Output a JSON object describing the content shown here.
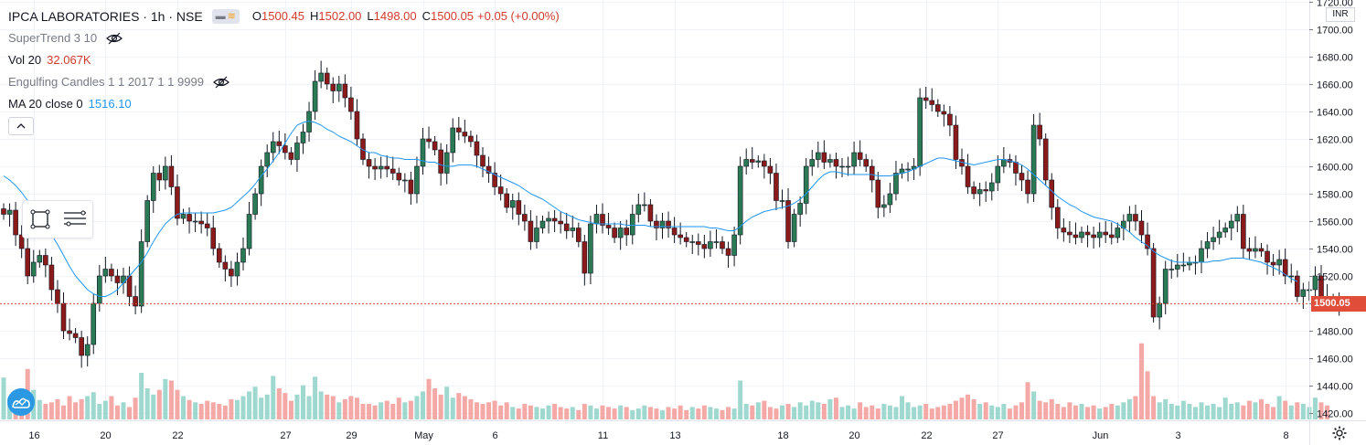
{
  "header": {
    "symbol": "IPCA LABORATORIES · 1h · NSE",
    "o_label": "O",
    "o_value": "1500.45",
    "h_label": "H",
    "h_value": "1502.00",
    "l_label": "L",
    "l_value": "1498.00",
    "c_label": "C",
    "c_value": "1500.05",
    "change": "+0.05 (+0.00%)"
  },
  "indicators": {
    "supertrend": "SuperTrend 3 10",
    "vol_label": "Vol 20",
    "vol_value": "32.067K",
    "engulfing": "Engulfing Candles 1 1 2017 1 1 9999",
    "ma_label": "MA 20 close 0",
    "ma_value": "1516.10"
  },
  "axis": {
    "currency": "INR",
    "current_price": "1500.05"
  },
  "colors": {
    "up": "#26a69a",
    "down": "#ef5350",
    "candle_up": "#2a7a55",
    "candle_down": "#8b1a1a",
    "ma": "#2196f3",
    "price_line": "#e04e3a"
  },
  "chart_data": {
    "type": "candlestick",
    "series": [
      {
        "name": "MA 20 close 0"
      },
      {
        "name": "Vol 20"
      }
    ],
    "ylim": [
      1415,
      1720
    ],
    "y_ticks": [
      1420,
      1440,
      1460,
      1480,
      1500,
      1520,
      1540,
      1560,
      1580,
      1600,
      1620,
      1640,
      1660,
      1680,
      1700,
      1720
    ],
    "y_tick_labels": [
      "1420.00",
      "1440.00",
      "1460.00",
      "1480.00",
      "1500.00",
      "1520.00",
      "1540.00",
      "1560.00",
      "1580.00",
      "1600.00",
      "1620.00",
      "1640.00",
      "1660.00",
      "1680.00",
      "1700.00",
      "1720.00"
    ],
    "x_ticks": [
      {
        "label": "16",
        "bar": 5
      },
      {
        "label": "20",
        "bar": 17
      },
      {
        "label": "22",
        "bar": 29
      },
      {
        "label": "27",
        "bar": 47
      },
      {
        "label": "29",
        "bar": 58
      },
      {
        "label": "May",
        "bar": 70
      },
      {
        "label": "6",
        "bar": 82
      },
      {
        "label": "11",
        "bar": 100
      },
      {
        "label": "13",
        "bar": 112
      },
      {
        "label": "18",
        "bar": 130
      },
      {
        "label": "20",
        "bar": 142
      },
      {
        "label": "22",
        "bar": 154
      },
      {
        "label": "27",
        "bar": 166
      },
      {
        "label": "Jun",
        "bar": 183
      },
      {
        "label": "3",
        "bar": 196
      },
      {
        "label": "8",
        "bar": 214
      }
    ],
    "last_price": 1500.05,
    "closes": [
      1565,
      1568,
      1550,
      1540,
      1520,
      1530,
      1535,
      1528,
      1510,
      1500,
      1480,
      1478,
      1475,
      1462,
      1470,
      1500,
      1520,
      1525,
      1520,
      1515,
      1520,
      1505,
      1498,
      1545,
      1575,
      1595,
      1590,
      1600,
      1585,
      1562,
      1565,
      1560,
      1560,
      1558,
      1555,
      1540,
      1530,
      1525,
      1520,
      1530,
      1540,
      1565,
      1580,
      1600,
      1610,
      1618,
      1615,
      1610,
      1605,
      1617,
      1625,
      1640,
      1662,
      1668,
      1660,
      1655,
      1660,
      1650,
      1640,
      1620,
      1605,
      1600,
      1598,
      1600,
      1598,
      1595,
      1590,
      1590,
      1580,
      1600,
      1620,
      1618,
      1612,
      1595,
      1610,
      1628,
      1625,
      1622,
      1618,
      1608,
      1600,
      1595,
      1585,
      1580,
      1570,
      1575,
      1565,
      1560,
      1545,
      1555,
      1560,
      1562,
      1560,
      1558,
      1553,
      1555,
      1545,
      1522,
      1558,
      1565,
      1557,
      1555,
      1548,
      1555,
      1550,
      1565,
      1572,
      1572,
      1560,
      1555,
      1560,
      1555,
      1550,
      1548,
      1545,
      1545,
      1543,
      1540,
      1545,
      1545,
      1540,
      1535,
      1550,
      1600,
      1605,
      1603,
      1604,
      1600,
      1595,
      1575,
      1575,
      1545,
      1565,
      1573,
      1600,
      1605,
      1610,
      1603,
      1605,
      1600,
      1600,
      1600,
      1610,
      1605,
      1600,
      1590,
      1570,
      1572,
      1580,
      1595,
      1598,
      1598,
      1600,
      1650,
      1648,
      1645,
      1640,
      1638,
      1630,
      1605,
      1600,
      1585,
      1580,
      1583,
      1582,
      1588,
      1600,
      1605,
      1603,
      1595,
      1590,
      1580,
      1630,
      1620,
      1590,
      1570,
      1555,
      1552,
      1550,
      1548,
      1552,
      1550,
      1548,
      1552,
      1550,
      1548,
      1555,
      1560,
      1565,
      1560,
      1550,
      1540,
      1490,
      1500,
      1525,
      1525,
      1528,
      1528,
      1530,
      1530,
      1540,
      1545,
      1548,
      1552,
      1555,
      1560,
      1565,
      1540,
      1538,
      1540,
      1538,
      1530,
      1528,
      1532,
      1520,
      1520,
      1505,
      1510,
      1510,
      1520,
      1505,
      1500,
      1503,
      1500
    ],
    "ma": [
      1593,
      1590,
      1586,
      1581,
      1575,
      1570,
      1565,
      1558,
      1550,
      1543,
      1535,
      1527,
      1520,
      1515,
      1510,
      1507,
      1505,
      1505,
      1507,
      1510,
      1515,
      1520,
      1525,
      1530,
      1537,
      1545,
      1552,
      1558,
      1562,
      1565,
      1566,
      1566,
      1566,
      1566,
      1566,
      1566,
      1567,
      1568,
      1570,
      1574,
      1578,
      1582,
      1587,
      1593,
      1598,
      1604,
      1610,
      1617,
      1624,
      1630,
      1632,
      1633,
      1632,
      1630,
      1627,
      1625,
      1622,
      1620,
      1618,
      1615,
      1612,
      1610,
      1610,
      1608,
      1607,
      1606,
      1606,
      1605,
      1605,
      1605,
      1604,
      1603,
      1603,
      1601,
      1600,
      1600,
      1601,
      1601,
      1601,
      1600,
      1598,
      1596,
      1594,
      1592,
      1590,
      1588,
      1586,
      1583,
      1580,
      1578,
      1576,
      1573,
      1570,
      1567,
      1565,
      1563,
      1561,
      1560,
      1559,
      1558,
      1558,
      1558,
      1558,
      1558,
      1557,
      1557,
      1557,
      1557,
      1556,
      1556,
      1556,
      1556,
      1556,
      1556,
      1556,
      1556,
      1556,
      1556,
      1555,
      1555,
      1554,
      1553,
      1553,
      1556,
      1560,
      1563,
      1565,
      1567,
      1568,
      1569,
      1570,
      1571,
      1573,
      1576,
      1580,
      1585,
      1590,
      1594,
      1596,
      1596,
      1595,
      1594,
      1594,
      1594,
      1594,
      1594,
      1593,
      1593,
      1593,
      1594,
      1595,
      1596,
      1598,
      1600,
      1602,
      1604,
      1606,
      1606,
      1605,
      1604,
      1603,
      1602,
      1601,
      1602,
      1603,
      1604,
      1605,
      1605,
      1604,
      1603,
      1601,
      1598,
      1594,
      1590,
      1586,
      1582,
      1578,
      1575,
      1572,
      1570,
      1567,
      1565,
      1563,
      1562,
      1561,
      1560,
      1558,
      1555,
      1552,
      1548,
      1545,
      1542,
      1538,
      1535,
      1533,
      1531,
      1530,
      1530,
      1530,
      1530,
      1530,
      1530,
      1531,
      1531,
      1532,
      1533,
      1533,
      1533,
      1532,
      1531,
      1530,
      1528,
      1526,
      1524,
      1521,
      1518,
      1516
    ],
    "volume_k": [
      54,
      28,
      22,
      30,
      65,
      38,
      25,
      20,
      22,
      26,
      18,
      30,
      22,
      26,
      30,
      35,
      20,
      24,
      30,
      18,
      22,
      16,
      28,
      60,
      40,
      32,
      38,
      52,
      50,
      38,
      30,
      25,
      22,
      20,
      24,
      22,
      20,
      18,
      26,
      25,
      30,
      36,
      42,
      28,
      32,
      56,
      40,
      34,
      24,
      32,
      44,
      30,
      55,
      36,
      32,
      30,
      22,
      26,
      30,
      28,
      20,
      20,
      18,
      22,
      24,
      20,
      28,
      22,
      24,
      30,
      36,
      52,
      40,
      32,
      42,
      28,
      34,
      30,
      26,
      22,
      20,
      22,
      24,
      18,
      22,
      16,
      14,
      20,
      18,
      16,
      14,
      18,
      20,
      16,
      14,
      16,
      12,
      20,
      18,
      14,
      18,
      16,
      14,
      18,
      16,
      12,
      14,
      18,
      16,
      14,
      12,
      16,
      14,
      18,
      12,
      16,
      14,
      18,
      16,
      14,
      12,
      16,
      14,
      50,
      20,
      18,
      22,
      24,
      16,
      14,
      18,
      20,
      16,
      22,
      18,
      24,
      22,
      20,
      26,
      28,
      16,
      18,
      14,
      22,
      16,
      18,
      14,
      20,
      18,
      16,
      30,
      22,
      16,
      18,
      20,
      14,
      16,
      18,
      20,
      24,
      28,
      32,
      26,
      20,
      22,
      18,
      16,
      20,
      14,
      18,
      22,
      48,
      36,
      24,
      22,
      26,
      20,
      16,
      22,
      18,
      20,
      16,
      18,
      14,
      16,
      20,
      18,
      22,
      26,
      30,
      98,
      62,
      30,
      22,
      26,
      20,
      18,
      24,
      20,
      16,
      22,
      18,
      20,
      16,
      28,
      20,
      22,
      18,
      24,
      22,
      26,
      20,
      16,
      30,
      24,
      18,
      22,
      20,
      16,
      28,
      22,
      18
    ]
  }
}
